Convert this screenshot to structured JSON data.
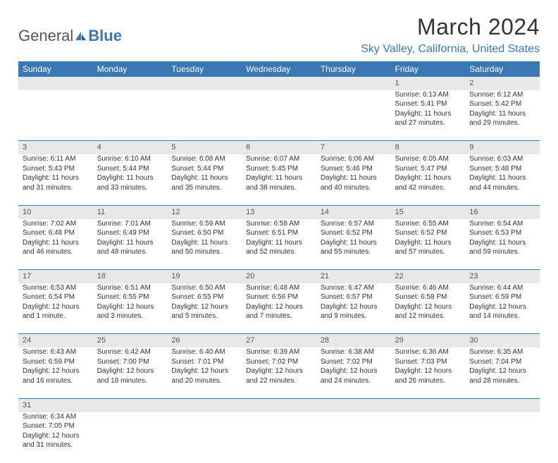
{
  "logo": {
    "text1": "General",
    "text2": "Blue"
  },
  "title": "March 2024",
  "location": "Sky Valley, California, United States",
  "colors": {
    "header_bg": "#3a78b5",
    "header_text": "#ffffff",
    "daynum_bg": "#e8e8e8",
    "divider": "#3a78b5",
    "location_text": "#3a78b5",
    "logo_blue": "#3a78b5",
    "body_text": "#333333"
  },
  "weekdays": [
    "Sunday",
    "Monday",
    "Tuesday",
    "Wednesday",
    "Thursday",
    "Friday",
    "Saturday"
  ],
  "weeks": [
    {
      "nums": [
        "",
        "",
        "",
        "",
        "",
        "1",
        "2"
      ],
      "cells": [
        [],
        [],
        [],
        [],
        [],
        [
          "Sunrise: 6:13 AM",
          "Sunset: 5:41 PM",
          "Daylight: 11 hours",
          "and 27 minutes."
        ],
        [
          "Sunrise: 6:12 AM",
          "Sunset: 5:42 PM",
          "Daylight: 11 hours",
          "and 29 minutes."
        ]
      ]
    },
    {
      "nums": [
        "3",
        "4",
        "5",
        "6",
        "7",
        "8",
        "9"
      ],
      "cells": [
        [
          "Sunrise: 6:11 AM",
          "Sunset: 5:43 PM",
          "Daylight: 11 hours",
          "and 31 minutes."
        ],
        [
          "Sunrise: 6:10 AM",
          "Sunset: 5:44 PM",
          "Daylight: 11 hours",
          "and 33 minutes."
        ],
        [
          "Sunrise: 6:08 AM",
          "Sunset: 5:44 PM",
          "Daylight: 11 hours",
          "and 35 minutes."
        ],
        [
          "Sunrise: 6:07 AM",
          "Sunset: 5:45 PM",
          "Daylight: 11 hours",
          "and 38 minutes."
        ],
        [
          "Sunrise: 6:06 AM",
          "Sunset: 5:46 PM",
          "Daylight: 11 hours",
          "and 40 minutes."
        ],
        [
          "Sunrise: 6:05 AM",
          "Sunset: 5:47 PM",
          "Daylight: 11 hours",
          "and 42 minutes."
        ],
        [
          "Sunrise: 6:03 AM",
          "Sunset: 5:48 PM",
          "Daylight: 11 hours",
          "and 44 minutes."
        ]
      ]
    },
    {
      "nums": [
        "10",
        "11",
        "12",
        "13",
        "14",
        "15",
        "16"
      ],
      "cells": [
        [
          "Sunrise: 7:02 AM",
          "Sunset: 6:48 PM",
          "Daylight: 11 hours",
          "and 46 minutes."
        ],
        [
          "Sunrise: 7:01 AM",
          "Sunset: 6:49 PM",
          "Daylight: 11 hours",
          "and 48 minutes."
        ],
        [
          "Sunrise: 6:59 AM",
          "Sunset: 6:50 PM",
          "Daylight: 11 hours",
          "and 50 minutes."
        ],
        [
          "Sunrise: 6:58 AM",
          "Sunset: 6:51 PM",
          "Daylight: 11 hours",
          "and 52 minutes."
        ],
        [
          "Sunrise: 6:57 AM",
          "Sunset: 6:52 PM",
          "Daylight: 11 hours",
          "and 55 minutes."
        ],
        [
          "Sunrise: 6:55 AM",
          "Sunset: 6:52 PM",
          "Daylight: 11 hours",
          "and 57 minutes."
        ],
        [
          "Sunrise: 6:54 AM",
          "Sunset: 6:53 PM",
          "Daylight: 11 hours",
          "and 59 minutes."
        ]
      ]
    },
    {
      "nums": [
        "17",
        "18",
        "19",
        "20",
        "21",
        "22",
        "23"
      ],
      "cells": [
        [
          "Sunrise: 6:53 AM",
          "Sunset: 6:54 PM",
          "Daylight: 12 hours",
          "and 1 minute."
        ],
        [
          "Sunrise: 6:51 AM",
          "Sunset: 6:55 PM",
          "Daylight: 12 hours",
          "and 3 minutes."
        ],
        [
          "Sunrise: 6:50 AM",
          "Sunset: 6:55 PM",
          "Daylight: 12 hours",
          "and 5 minutes."
        ],
        [
          "Sunrise: 6:48 AM",
          "Sunset: 6:56 PM",
          "Daylight: 12 hours",
          "and 7 minutes."
        ],
        [
          "Sunrise: 6:47 AM",
          "Sunset: 6:57 PM",
          "Daylight: 12 hours",
          "and 9 minutes."
        ],
        [
          "Sunrise: 6:46 AM",
          "Sunset: 6:58 PM",
          "Daylight: 12 hours",
          "and 12 minutes."
        ],
        [
          "Sunrise: 6:44 AM",
          "Sunset: 6:59 PM",
          "Daylight: 12 hours",
          "and 14 minutes."
        ]
      ]
    },
    {
      "nums": [
        "24",
        "25",
        "26",
        "27",
        "28",
        "29",
        "30"
      ],
      "cells": [
        [
          "Sunrise: 6:43 AM",
          "Sunset: 6:59 PM",
          "Daylight: 12 hours",
          "and 16 minutes."
        ],
        [
          "Sunrise: 6:42 AM",
          "Sunset: 7:00 PM",
          "Daylight: 12 hours",
          "and 18 minutes."
        ],
        [
          "Sunrise: 6:40 AM",
          "Sunset: 7:01 PM",
          "Daylight: 12 hours",
          "and 20 minutes."
        ],
        [
          "Sunrise: 6:39 AM",
          "Sunset: 7:02 PM",
          "Daylight: 12 hours",
          "and 22 minutes."
        ],
        [
          "Sunrise: 6:38 AM",
          "Sunset: 7:02 PM",
          "Daylight: 12 hours",
          "and 24 minutes."
        ],
        [
          "Sunrise: 6:36 AM",
          "Sunset: 7:03 PM",
          "Daylight: 12 hours",
          "and 26 minutes."
        ],
        [
          "Sunrise: 6:35 AM",
          "Sunset: 7:04 PM",
          "Daylight: 12 hours",
          "and 28 minutes."
        ]
      ]
    },
    {
      "nums": [
        "31",
        "",
        "",
        "",
        "",
        "",
        ""
      ],
      "cells": [
        [
          "Sunrise: 6:34 AM",
          "Sunset: 7:05 PM",
          "Daylight: 12 hours",
          "and 31 minutes."
        ],
        [],
        [],
        [],
        [],
        [],
        []
      ]
    }
  ]
}
